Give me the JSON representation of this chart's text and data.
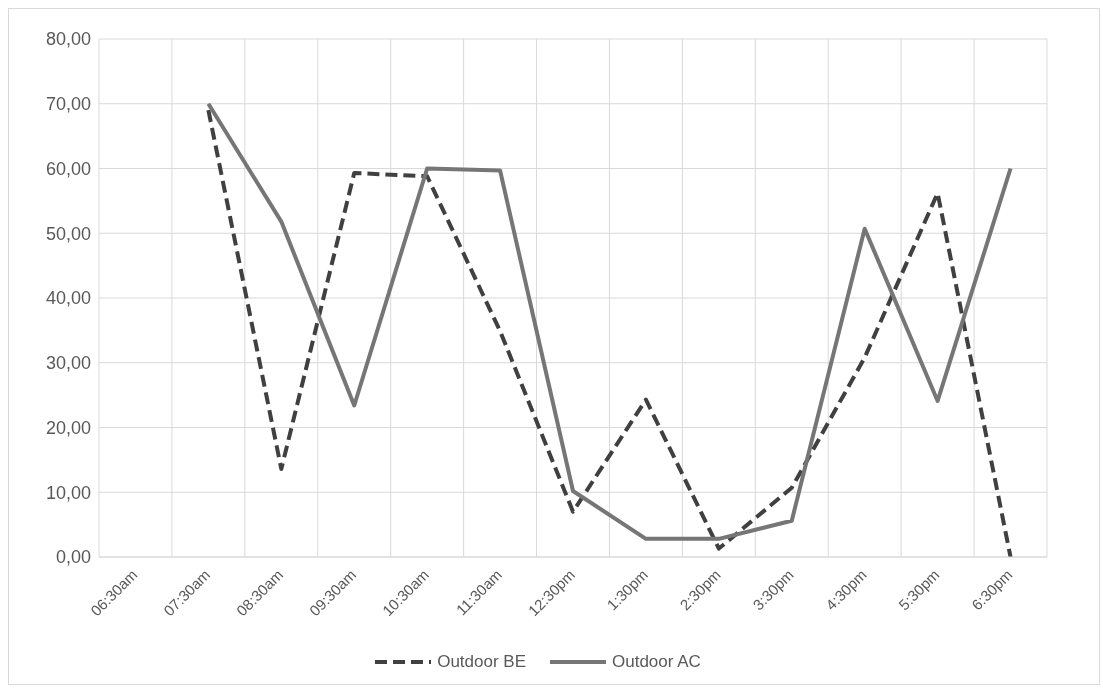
{
  "chart_data": {
    "type": "line",
    "categories": [
      "06:30am",
      "07:30am",
      "08:30am",
      "09:30am",
      "10:30am",
      "11:30am",
      "12:30pm",
      "1:30pm",
      "2:30pm",
      "3:30pm",
      "4:30pm",
      "5:30pm",
      "6:30pm"
    ],
    "series": [
      {
        "name": "Outdoor BE",
        "color": "#404040",
        "line_style": "dashed",
        "values": [
          null,
          69,
          13.6,
          59.3,
          58.8,
          34.9,
          7,
          24.3,
          1.3,
          10.7,
          30.8,
          56.2,
          0
        ]
      },
      {
        "name": "Outdoor AC",
        "color": "#767676",
        "line_style": "solid",
        "values": [
          null,
          70,
          51.8,
          23.4,
          60,
          59.7,
          10.2,
          2.8,
          2.8,
          5.6,
          50.7,
          24.1,
          60
        ]
      }
    ],
    "ylim": [
      0,
      80
    ],
    "yticks": [
      {
        "value": 0,
        "label": "0,00"
      },
      {
        "value": 10,
        "label": "10,00"
      },
      {
        "value": 20,
        "label": "20,00"
      },
      {
        "value": 30,
        "label": "30,00"
      },
      {
        "value": 40,
        "label": "40,00"
      },
      {
        "value": 50,
        "label": "50,00"
      },
      {
        "value": 60,
        "label": "60,00"
      },
      {
        "value": 70,
        "label": "70,00"
      },
      {
        "value": 80,
        "label": "80,00"
      }
    ],
    "grid": true,
    "legend": "bottom",
    "marker": "none"
  }
}
